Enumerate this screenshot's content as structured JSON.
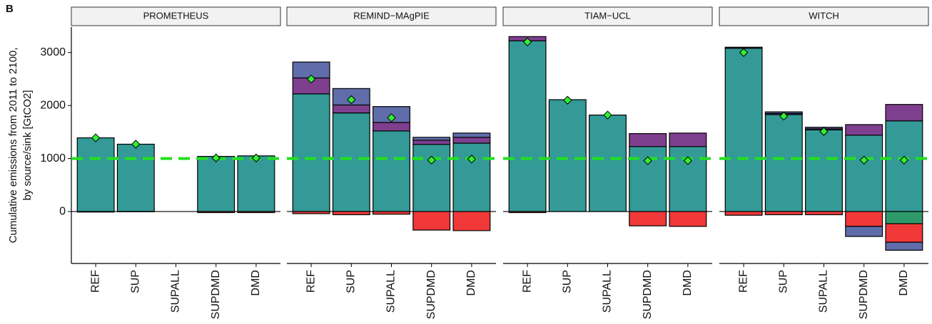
{
  "panel_label": "B",
  "chart_data": [
    {
      "type": "bar",
      "stacked": true,
      "title": "PROMETHEUS",
      "ylabel": [
        "Cumulative emissions from 2011 to 2100,",
        "by source/sink [GtCO2]"
      ],
      "categories": [
        "REF",
        "SUP",
        "SUPALL",
        "SUPDMD",
        "DMD"
      ],
      "series": [
        {
          "color": "#339a97",
          "values": [
            1390,
            1270,
            null,
            1040,
            1050
          ]
        },
        {
          "color": "#f03838",
          "values": [
            -10,
            -5,
            null,
            -20,
            -20
          ]
        }
      ],
      "markers": {
        "shape": "diamond",
        "color": "#33ee33",
        "values": [
          1390,
          1270,
          null,
          1010,
          1010
        ]
      },
      "hline": {
        "value": 1000,
        "color": "#22e022",
        "dashed": true
      },
      "ylim": [
        -980,
        3480
      ],
      "yticks": [
        0,
        1000,
        2000,
        3000
      ]
    },
    {
      "type": "bar",
      "stacked": true,
      "title": "REMIND−MAgPIE",
      "categories": [
        "REF",
        "SUP",
        "SUPALL",
        "SUPDMD",
        "DMD"
      ],
      "series": [
        {
          "color": "#339a97",
          "values": [
            2220,
            1860,
            1520,
            1265,
            1290
          ]
        },
        {
          "color": "#7e3f8f",
          "values": [
            300,
            150,
            160,
            80,
            110
          ]
        },
        {
          "color": "#5f6daa",
          "values": [
            300,
            310,
            300,
            55,
            80
          ]
        },
        {
          "color": "#f03838",
          "values": [
            -40,
            -60,
            -50,
            -350,
            -360
          ]
        }
      ],
      "markers": {
        "shape": "diamond",
        "color": "#33ee33",
        "values": [
          2500,
          2110,
          1770,
          970,
          990
        ]
      },
      "hline": {
        "value": 1000,
        "color": "#22e022",
        "dashed": true
      },
      "ylim": [
        -980,
        3480
      ]
    },
    {
      "type": "bar",
      "stacked": true,
      "title": "TIAM−UCL",
      "categories": [
        "REF",
        "SUP",
        "SUPALL",
        "SUPDMD",
        "DMD"
      ],
      "series": [
        {
          "color": "#339a97",
          "values": [
            3220,
            2110,
            1820,
            1225,
            1225
          ]
        },
        {
          "color": "#7e3f8f",
          "values": [
            80,
            null,
            null,
            245,
            255
          ]
        },
        {
          "color": "#f03838",
          "values": [
            -20,
            null,
            null,
            -270,
            -280
          ]
        }
      ],
      "markers": {
        "shape": "diamond",
        "color": "#33ee33",
        "values": [
          3200,
          2100,
          1820,
          960,
          960
        ]
      },
      "hline": {
        "value": 1000,
        "color": "#22e022",
        "dashed": true
      },
      "ylim": [
        -980,
        3480
      ]
    },
    {
      "type": "bar",
      "stacked": true,
      "title": "WITCH",
      "categories": [
        "REF",
        "SUP",
        "SUPALL",
        "SUPDMD",
        "DMD"
      ],
      "series": [
        {
          "color": "#339a97",
          "values": [
            3080,
            1830,
            1540,
            1440,
            1710
          ]
        },
        {
          "color": "#7e3f8f",
          "values": [
            20,
            20,
            20,
            200,
            310
          ]
        },
        {
          "color": "#5f6daa",
          "values": [
            null,
            30,
            30,
            -190,
            -150
          ]
        },
        {
          "color": "#f03838",
          "values": [
            -70,
            -60,
            -60,
            -280,
            -350
          ]
        },
        {
          "color": "#2e9a6a",
          "values": [
            null,
            null,
            null,
            null,
            -230
          ]
        }
      ],
      "markers": {
        "shape": "diamond",
        "color": "#33ee33",
        "values": [
          3000,
          1800,
          1510,
          970,
          970
        ]
      },
      "hline": {
        "value": 1000,
        "color": "#22e022",
        "dashed": true
      },
      "ylim": [
        -980,
        3480
      ]
    }
  ]
}
